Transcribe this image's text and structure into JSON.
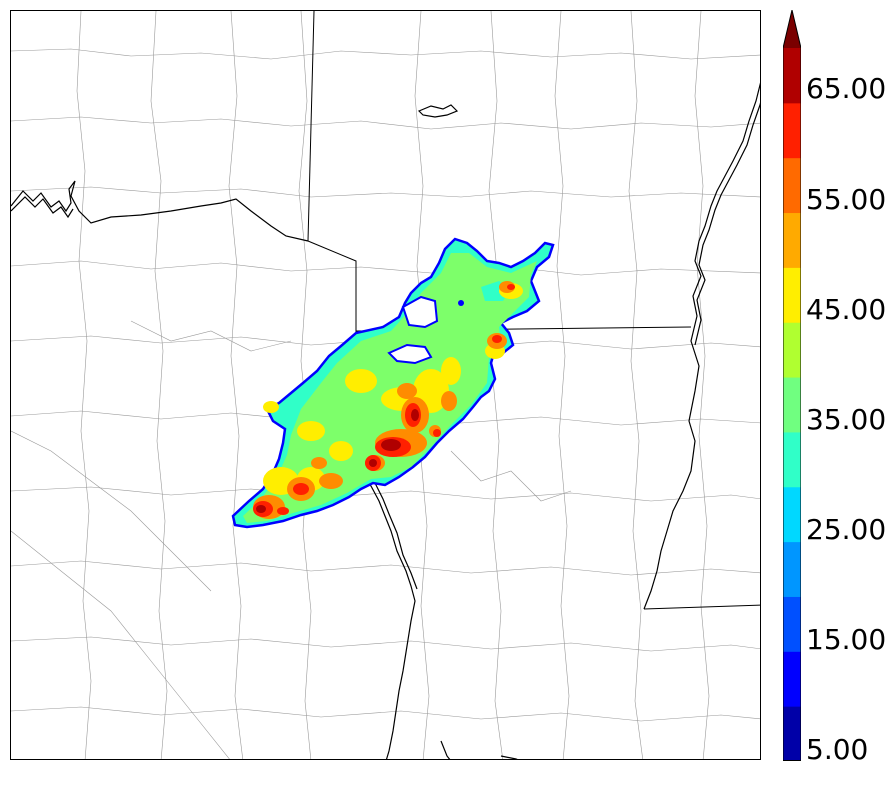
{
  "colorbar": {
    "tick_labels": [
      "5.00",
      "15.00",
      "25.00",
      "35.00",
      "45.00",
      "55.00",
      "65.00"
    ],
    "levels": [
      5,
      10,
      15,
      20,
      25,
      30,
      35,
      40,
      45,
      50,
      55,
      60,
      65,
      70
    ],
    "extend": "max",
    "colors": [
      "#0000a8",
      "#0000ff",
      "#0050ff",
      "#0096ff",
      "#00d8ff",
      "#30ffc8",
      "#70ff80",
      "#b0ff30",
      "#ffee00",
      "#ffaa00",
      "#ff6a00",
      "#ff2000",
      "#b00000",
      "#7a0000"
    ]
  },
  "map": {
    "field_colors": {
      "outline": "#0000ff",
      "edge": "#30ffc8",
      "base": "#7dff6a",
      "yellow": "#ffee00",
      "orange": "#ff8c00",
      "red": "#ff2000",
      "dark_red": "#b00000"
    },
    "line_colors": {
      "state": "#000000",
      "county": "#999999",
      "water": "#000000"
    }
  }
}
